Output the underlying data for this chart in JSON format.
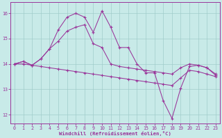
{
  "xlabel": "Windchill (Refroidissement éolien,°C)",
  "background_color": "#c8eae8",
  "grid_color": "#a0ccca",
  "line_color": "#993399",
  "xlim_min": -0.5,
  "xlim_max": 23.5,
  "ylim_min": 11.65,
  "ylim_max": 16.45,
  "yticks": [
    12,
    13,
    14,
    15,
    16
  ],
  "xticks": [
    0,
    1,
    2,
    3,
    4,
    5,
    6,
    7,
    8,
    9,
    10,
    11,
    12,
    13,
    14,
    15,
    16,
    17,
    18,
    19,
    20,
    21,
    22,
    23
  ],
  "lines": [
    [
      14.0,
      14.1,
      13.95,
      14.2,
      14.6,
      14.9,
      15.3,
      15.45,
      15.55,
      14.8,
      14.65,
      14.0,
      13.9,
      13.85,
      13.8,
      13.75,
      13.7,
      13.65,
      13.6,
      13.85,
      14.0,
      13.95,
      13.85,
      13.6
    ],
    [
      14.0,
      14.1,
      13.95,
      14.2,
      14.6,
      15.35,
      15.85,
      16.0,
      15.85,
      15.25,
      16.1,
      15.45,
      14.65,
      14.65,
      14.0,
      13.65,
      13.65,
      12.55,
      11.85,
      13.05,
      13.9,
      13.95,
      13.85,
      13.55
    ],
    [
      14.0,
      14.0,
      13.95,
      13.9,
      13.85,
      13.8,
      13.75,
      13.7,
      13.65,
      13.6,
      13.55,
      13.5,
      13.45,
      13.4,
      13.35,
      13.3,
      13.25,
      13.2,
      13.15,
      13.45,
      13.75,
      13.7,
      13.6,
      13.5
    ]
  ]
}
